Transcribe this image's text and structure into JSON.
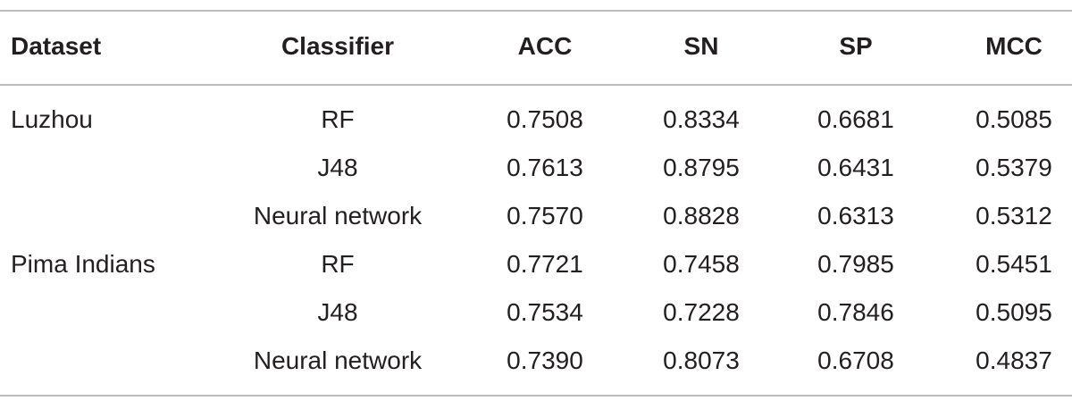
{
  "table": {
    "headers": [
      "Dataset",
      "Classifier",
      "ACC",
      "SN",
      "SP",
      "MCC"
    ],
    "groups": [
      {
        "dataset": "Luzhou",
        "rows": [
          {
            "classifier": "RF",
            "values": [
              "0.7508",
              "0.8334",
              "0.6681",
              "0.5085"
            ]
          },
          {
            "classifier": "J48",
            "values": [
              "0.7613",
              "0.8795",
              "0.6431",
              "0.5379"
            ]
          },
          {
            "classifier": "Neural network",
            "values": [
              "0.7570",
              "0.8828",
              "0.6313",
              "0.5312"
            ]
          }
        ]
      },
      {
        "dataset": "Pima Indians",
        "rows": [
          {
            "classifier": "RF",
            "values": [
              "0.7721",
              "0.7458",
              "0.7985",
              "0.5451"
            ]
          },
          {
            "classifier": "J48",
            "values": [
              "0.7534",
              "0.7228",
              "0.7846",
              "0.5095"
            ]
          },
          {
            "classifier": "Neural network",
            "values": [
              "0.7390",
              "0.8073",
              "0.6708",
              "0.4837"
            ]
          }
        ]
      }
    ]
  }
}
